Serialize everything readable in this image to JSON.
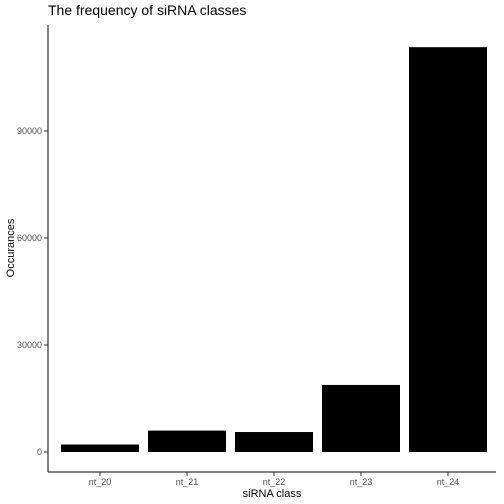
{
  "chart_data": {
    "type": "bar",
    "title": "The frequency of siRNA classes",
    "xlabel": "siRNA class",
    "ylabel": "Occurances",
    "categories": [
      "nt_20",
      "nt_21",
      "nt_22",
      "nt_23",
      "nt_24"
    ],
    "values": [
      2100,
      6000,
      5600,
      18800,
      113500
    ],
    "yticks": [
      0,
      30000,
      60000,
      90000
    ],
    "ylim": [
      0,
      119000
    ],
    "grid": false,
    "legend": "none",
    "bar_color": "#000000"
  }
}
